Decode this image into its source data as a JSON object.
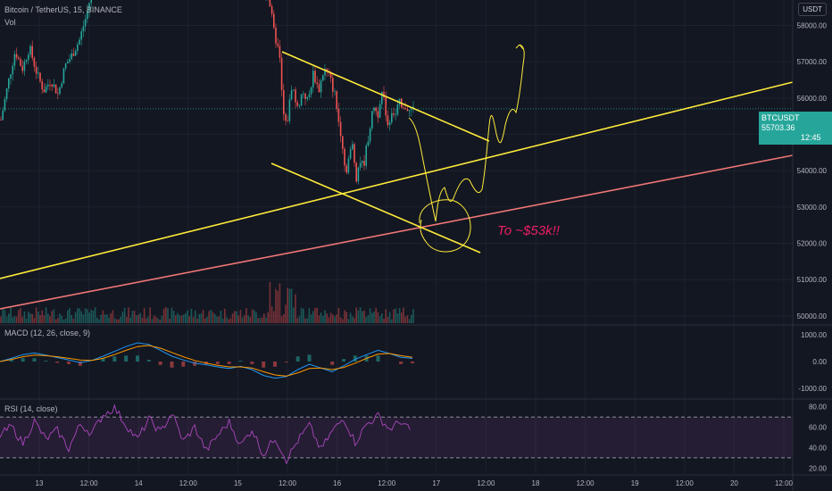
{
  "header": {
    "symbol": "Bitcoin / TetherUS, 15, BINANCE",
    "volume_label": "Vol",
    "currency_button": "USDT"
  },
  "price_badge": {
    "symbol": "BTCUSDT",
    "price": "55703.36",
    "countdown": "12:45"
  },
  "annotation": "To ~$53k!!",
  "colors": {
    "background": "#131722",
    "up": "#26a69a",
    "down": "#ef5350",
    "trendline": "#ffeb3b",
    "support": "#ef7676",
    "macd": "#2196f3",
    "signal": "#ff9800",
    "rsi": "#ab47bc",
    "annotation": "#e91e63"
  },
  "chart_data": [
    {
      "type": "candlestick",
      "panel": "price",
      "yaxis_ticks": [
        "58000.00",
        "57000.00",
        "56000.00",
        "55000.00",
        "54000.00",
        "53000.00",
        "52000.00",
        "51000.00",
        "50000.00"
      ],
      "xaxis_ticks": [
        "13",
        "12:00",
        "14",
        "12:00",
        "15",
        "12:00",
        "16",
        "12:00",
        "17",
        "12:00",
        "18",
        "12:00",
        "19",
        "12:00",
        "20",
        "12:00"
      ],
      "ylim": [
        49800,
        58700
      ],
      "close_path": [
        [
          0,
          55400
        ],
        [
          8,
          56400
        ],
        [
          16,
          57300
        ],
        [
          24,
          56800
        ],
        [
          32,
          57400
        ],
        [
          40,
          56700
        ],
        [
          48,
          56200
        ],
        [
          56,
          56500
        ],
        [
          64,
          56100
        ],
        [
          72,
          56900
        ],
        [
          80,
          57200
        ],
        [
          88,
          57600
        ],
        [
          96,
          58300
        ],
        [
          104,
          59200
        ],
        [
          112,
          59800
        ],
        [
          140,
          59600
        ],
        [
          180,
          59200
        ],
        [
          220,
          59500
        ],
        [
          270,
          59300
        ],
        [
          300,
          58800
        ],
        [
          306,
          57800
        ],
        [
          312,
          57200
        ],
        [
          316,
          55600
        ],
        [
          320,
          55200
        ],
        [
          326,
          56400
        ],
        [
          332,
          55700
        ],
        [
          338,
          56200
        ],
        [
          344,
          55900
        ],
        [
          350,
          56700
        ],
        [
          356,
          56200
        ],
        [
          362,
          56800
        ],
        [
          368,
          56600
        ],
        [
          374,
          56100
        ],
        [
          378,
          55400
        ],
        [
          382,
          54900
        ],
        [
          386,
          53900
        ],
        [
          390,
          54400
        ],
        [
          394,
          54700
        ],
        [
          398,
          53800
        ],
        [
          402,
          54300
        ],
        [
          406,
          54100
        ],
        [
          410,
          54700
        ],
        [
          414,
          55300
        ],
        [
          418,
          55800
        ],
        [
          422,
          55500
        ],
        [
          426,
          56200
        ],
        [
          430,
          55800
        ],
        [
          434,
          55200
        ],
        [
          438,
          55700
        ],
        [
          442,
          55500
        ],
        [
          446,
          55900
        ],
        [
          450,
          55600
        ],
        [
          454,
          55800
        ],
        [
          458,
          55600
        ],
        [
          462,
          55700
        ]
      ]
    },
    {
      "type": "line",
      "panel": "macd",
      "title": "MACD (12, 26, close, 9)",
      "yaxis_ticks": [
        "1000.00",
        "0.00",
        "-1000.00"
      ],
      "ylim": [
        -1300,
        1300
      ],
      "series": [
        {
          "values": [
            0,
            120,
            260,
            320,
            240,
            150,
            60,
            -40,
            40,
            200,
            380,
            560,
            700,
            640,
            420,
            200,
            60,
            -60,
            -120,
            -200,
            -260,
            -180,
            -300,
            -520,
            -620,
            -560,
            -300,
            -100,
            -240,
            -380,
            -160,
            80,
            260,
            420,
            300,
            160,
            120
          ]
        },
        {
          "values": [
            0,
            80,
            180,
            240,
            220,
            180,
            120,
            60,
            40,
            120,
            260,
            420,
            560,
            600,
            500,
            340,
            180,
            40,
            -60,
            -140,
            -200,
            -200,
            -240,
            -380,
            -500,
            -540,
            -420,
            -260,
            -240,
            -300,
            -220,
            -60,
            120,
            280,
            300,
            220,
            160
          ]
        }
      ]
    },
    {
      "type": "line",
      "panel": "rsi",
      "title": "RSI (14, close)",
      "yaxis_ticks": [
        "80.00",
        "60.00",
        "40.00",
        "20.00"
      ],
      "ylim": [
        15,
        85
      ],
      "bands": [
        70,
        30
      ],
      "series": [
        {
          "values": [
            52,
            61,
            44,
            66,
            48,
            57,
            39,
            63,
            54,
            72,
            79,
            62,
            48,
            68,
            55,
            74,
            46,
            60,
            37,
            52,
            65,
            42,
            58,
            33,
            50,
            28,
            47,
            62,
            38,
            56,
            69,
            45,
            63,
            71,
            58,
            66,
            54
          ]
        }
      ]
    }
  ]
}
